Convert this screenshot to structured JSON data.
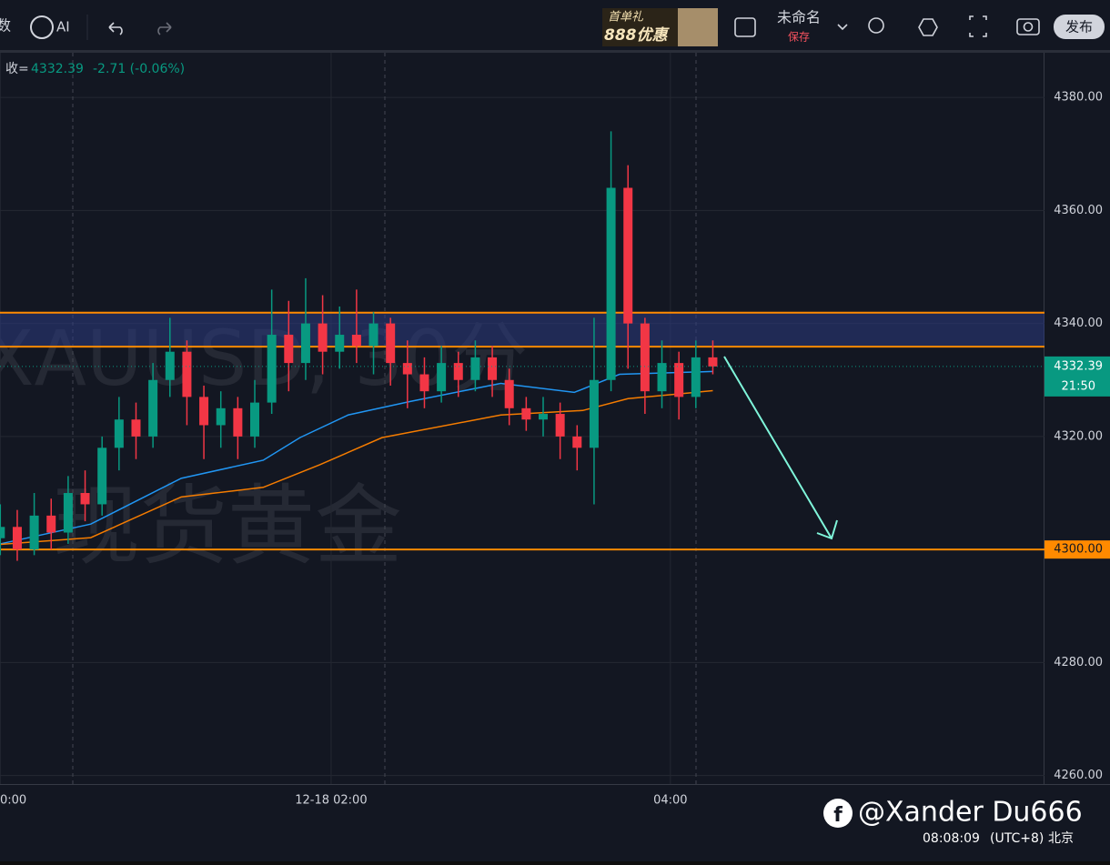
{
  "toolbar": {
    "cut_label": "数",
    "ai": "AI",
    "promo_top": "首单礼",
    "promo_bottom": "888优惠",
    "layout_name": "未命名",
    "save": "保存",
    "publish": "发布"
  },
  "chart_data": {
    "type": "candlestick",
    "watermark_symbol": "XAUUSD, 30分",
    "watermark_name": "现货黄金",
    "header": {
      "label": "收=",
      "close": "4332.39",
      "change": "-2.71 (-0.06%)"
    },
    "x": [
      3,
      9,
      15,
      21,
      27,
      33,
      39,
      45,
      51,
      57,
      63,
      69,
      75,
      81,
      87,
      93,
      99,
      105,
      111,
      117,
      123,
      129,
      135,
      141,
      147,
      153,
      159,
      165,
      171,
      177,
      183,
      189,
      195,
      201,
      207,
      213,
      219,
      225,
      231,
      237,
      243,
      249,
      255
    ],
    "open": [
      4302,
      4304,
      4300,
      4306,
      4303,
      4310,
      4308,
      4318,
      4323,
      4320,
      4330,
      4335,
      4327,
      4322,
      4325,
      4320,
      4326,
      4338,
      4333,
      4340,
      4335,
      4338,
      4336,
      4340,
      4333,
      4331,
      4328,
      4333,
      4330,
      4334,
      4330,
      4325,
      4323,
      4324,
      4320,
      4318,
      4330,
      4364,
      4340,
      4328,
      4333,
      4327,
      4334
    ],
    "high": [
      4308,
      4307,
      4310,
      4309,
      4313,
      4314,
      4320,
      4327,
      4326,
      4333,
      4341,
      4337,
      4329,
      4328,
      4327,
      4330,
      4346,
      4344,
      4348,
      4345,
      4343,
      4346,
      4342,
      4341,
      4337,
      4334,
      4336,
      4335,
      4337,
      4336,
      4332,
      4327,
      4327,
      4326,
      4322,
      4341,
      4374,
      4368,
      4341,
      4337,
      4335,
      4337,
      4337
    ],
    "low": [
      4299,
      4298,
      4299,
      4300,
      4301,
      4305,
      4306,
      4314,
      4316,
      4318,
      4327,
      4322,
      4316,
      4318,
      4316,
      4318,
      4324,
      4328,
      4330,
      4331,
      4332,
      4333,
      4331,
      4329,
      4325,
      4325,
      4326,
      4327,
      4328,
      4327,
      4322,
      4321,
      4320,
      4316,
      4314,
      4308,
      4328,
      4332,
      4324,
      4325,
      4323,
      4325,
      4331
    ],
    "close": [
      4304,
      4300,
      4306,
      4303,
      4310,
      4308,
      4318,
      4323,
      4320,
      4330,
      4335,
      4327,
      4322,
      4325,
      4320,
      4326,
      4338,
      4333,
      4340,
      4335,
      4338,
      4336,
      4340,
      4333,
      4331,
      4328,
      4333,
      4330,
      4334,
      4330,
      4325,
      4323,
      4324,
      4320,
      4318,
      4330,
      4364,
      4340,
      4328,
      4333,
      4327,
      4334,
      4332.39
    ],
    "up_color": "#089981",
    "down_color": "#f23645",
    "lines": [
      {
        "color": "#2196f3",
        "x": [
          3,
          35,
          67,
          96,
          109,
          126,
          148,
          180,
          206,
          222,
          255
        ],
        "values": [
          4301,
          4304.5,
          4312.6,
          4315.8,
          4319.8,
          4323.8,
          4326.2,
          4329.4,
          4327.8,
          4331,
          4331.5
        ]
      },
      {
        "color": "#f57c00",
        "x": [
          3,
          35,
          67,
          96,
          116,
          138,
          180,
          209,
          225,
          255
        ],
        "values": [
          4300.9,
          4302.1,
          4309.3,
          4311,
          4315,
          4319.8,
          4323.8,
          4324.6,
          4326.7,
          4328.1
        ]
      }
    ],
    "zone": [
      4335.9,
      4341.9
    ],
    "zone_color": "#ff8a00",
    "level": {
      "value": 4300,
      "label": "4300.00"
    },
    "last_price": {
      "value": 4332.39,
      "label": "4332.39"
    },
    "countdown": "21:50",
    "xlim": [
      2.9,
      372.3
    ],
    "ylim": [
      4258.5,
      4387.9
    ],
    "xticks": [
      {
        "value": 3,
        "label": "0:00"
      },
      {
        "value": 120,
        "label": "12-18 02:00"
      },
      {
        "value": 240,
        "label": "04:00"
      }
    ],
    "yticks": [
      {
        "value": 4260,
        "label": "4260.00"
      },
      {
        "value": 4280,
        "label": "4280.00"
      },
      {
        "value": 4320,
        "label": "4320.00"
      },
      {
        "value": 4340,
        "label": "4340.00"
      },
      {
        "value": 4360,
        "label": "4360.00"
      },
      {
        "value": 4380,
        "label": "4380.00"
      }
    ],
    "grid": true
  },
  "footer": {
    "handle": "@Xander Du666",
    "time": "08:08:09",
    "zone": "(UTC+8)",
    "city": "北京"
  }
}
